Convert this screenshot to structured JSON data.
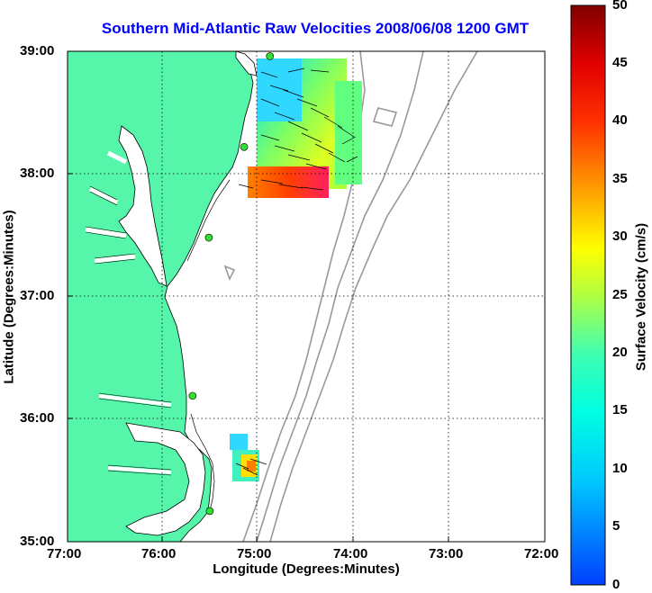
{
  "title": "Southern Mid-Atlantic Raw Velocities 2008/06/08 1200 GMT",
  "xlabel": "Longitude (Degrees:Minutes)",
  "ylabel": "Latitude (Degrees:Minutes)",
  "colorbar_label": "Surface Velocity (cm/s)",
  "x_ticks": [
    "77:00",
    "76:00",
    "75:00",
    "74:00",
    "73:00",
    "72:00"
  ],
  "y_ticks": [
    "39:00",
    "38:00",
    "37:00",
    "36:00",
    "35:00"
  ],
  "cb_ticks": [
    "50",
    "45",
    "40",
    "35",
    "30",
    "25",
    "20",
    "15",
    "10",
    "5",
    "0"
  ],
  "colors": {
    "land": "#55f5aa",
    "grid": "#000000",
    "bathymetry": "#999999",
    "title": "#0000ff",
    "station": "#33dd33"
  },
  "map_extent": {
    "lon_min": -77,
    "lon_max": -72,
    "lat_min": 35,
    "lat_max": 39
  },
  "colorbar_range": [
    0,
    50
  ],
  "stations": [
    {
      "lon": -74.88,
      "lat": 38.96
    },
    {
      "lon": -75.15,
      "lat": 38.22
    },
    {
      "lon": -75.52,
      "lat": 37.48
    },
    {
      "lon": -75.69,
      "lat": 36.19
    },
    {
      "lon": -75.51,
      "lat": 35.25
    }
  ]
}
